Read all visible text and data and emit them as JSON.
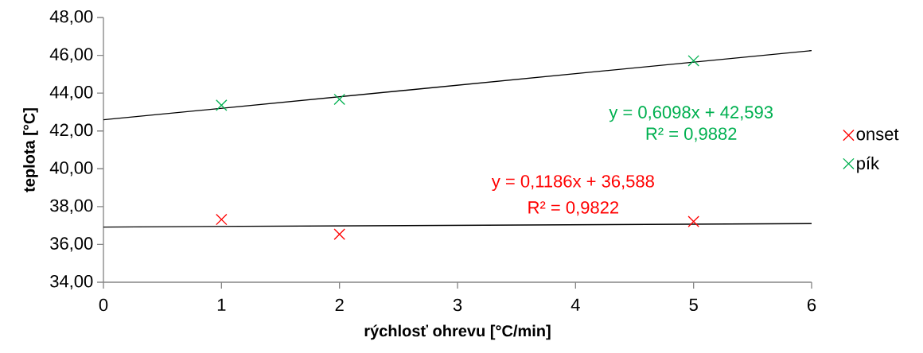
{
  "chart_data": {
    "type": "scatter",
    "xlabel": "rýchlosť ohrevu [°C/min]",
    "ylabel": "teplota [°C]",
    "xlim": [
      0,
      6
    ],
    "ylim": [
      34,
      48
    ],
    "xticks": [
      0,
      1,
      2,
      3,
      4,
      5,
      6
    ],
    "yticks": [
      {
        "value": 34,
        "label": "34,00"
      },
      {
        "value": 36,
        "label": "36,00"
      },
      {
        "value": 38,
        "label": "38,00"
      },
      {
        "value": 40,
        "label": "40,00"
      },
      {
        "value": 42,
        "label": "42,00"
      },
      {
        "value": 44,
        "label": "44,00"
      },
      {
        "value": 46,
        "label": "46,00"
      },
      {
        "value": 48,
        "label": "48,00"
      }
    ],
    "marker": "cross",
    "legend": "right",
    "series": [
      {
        "name": "onset",
        "color": "#ff0000",
        "x": [
          1,
          2,
          5
        ],
        "values": [
          37.32,
          36.54,
          37.21
        ]
      },
      {
        "name": "pík",
        "color": "#00b050",
        "x": [
          1,
          2,
          5
        ],
        "values": [
          43.36,
          43.67,
          45.71
        ]
      },
      {
        "type": "line",
        "color": "#000000",
        "x": [
          0,
          6
        ],
        "values": [
          36.92,
          37.1
        ],
        "marker": "none"
      },
      {
        "type": "line",
        "color": "#000000",
        "x": [
          0,
          6
        ],
        "values": [
          42.59,
          46.25
        ],
        "marker": "none"
      }
    ],
    "annotations": [
      "y = 0,1186x + 36,588",
      "R² = 0,9822",
      "y = 0,6098x + 42,593",
      "R² = 0,9882"
    ]
  }
}
